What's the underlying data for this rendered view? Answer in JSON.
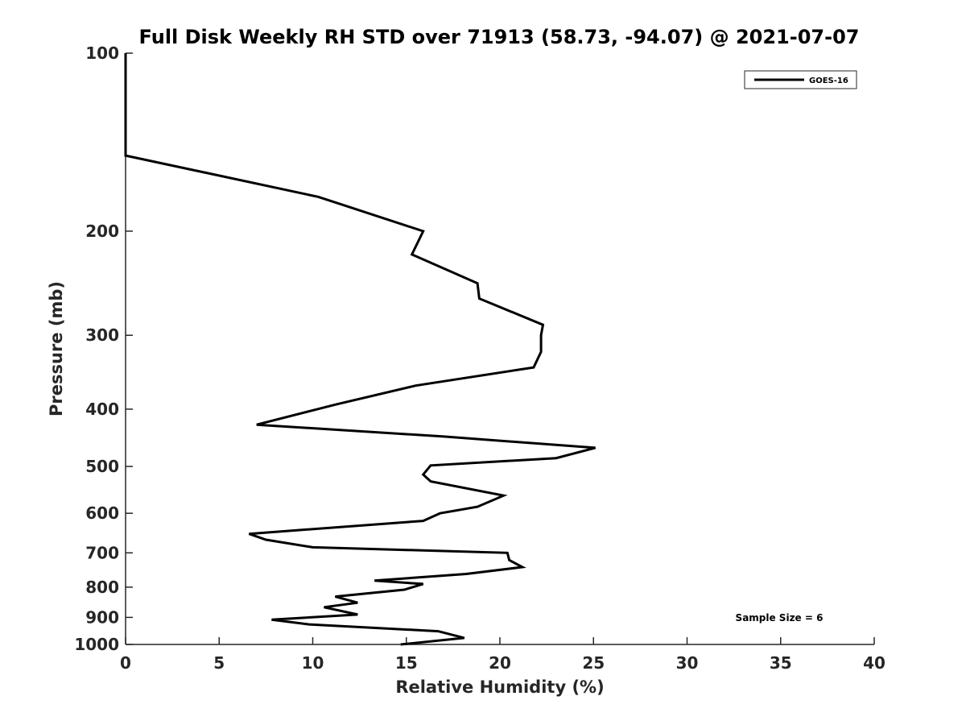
{
  "chart_data": {
    "type": "line",
    "title": "Full Disk Weekly RH STD over 71913 (58.73, -94.07) @ 2021-07-07",
    "xlabel": "Relative Humidity (%)",
    "ylabel": "Pressure (mb)",
    "xlim": [
      0,
      40
    ],
    "ylim": [
      100,
      1000
    ],
    "y_scale": "log",
    "y_reversed": true,
    "xticks": [
      0,
      5,
      10,
      15,
      20,
      25,
      30,
      35,
      40
    ],
    "yticks": [
      100,
      200,
      300,
      400,
      500,
      600,
      700,
      800,
      900,
      1000
    ],
    "grid": false,
    "legend": {
      "placement": "top-right",
      "entries": [
        "GOES-16"
      ]
    },
    "annotation": "Sample Size = 6",
    "series": [
      {
        "name": "GOES-16",
        "color": "#000000",
        "points": [
          [
            0.0,
            100
          ],
          [
            0.0,
            103
          ],
          [
            0.0,
            107
          ],
          [
            0.0,
            110
          ],
          [
            0.0,
            114
          ],
          [
            0.0,
            119
          ],
          [
            0.0,
            123
          ],
          [
            0.0,
            128
          ],
          [
            0.0,
            133
          ],
          [
            0.0,
            138
          ],
          [
            0.0,
            143
          ],
          [
            0.0,
            149
          ],
          [
            10.3,
            175
          ],
          [
            15.9,
            200
          ],
          [
            15.3,
            219
          ],
          [
            18.8,
            245
          ],
          [
            18.9,
            260
          ],
          [
            22.3,
            288
          ],
          [
            22.2,
            300
          ],
          [
            22.2,
            320
          ],
          [
            21.8,
            340
          ],
          [
            15.5,
            365
          ],
          [
            11.2,
            393
          ],
          [
            7.0,
            425
          ],
          [
            17.0,
            445
          ],
          [
            25.1,
            465
          ],
          [
            23.0,
            484
          ],
          [
            16.3,
            498
          ],
          [
            15.9,
            516
          ],
          [
            16.3,
            530
          ],
          [
            20.2,
            560
          ],
          [
            18.8,
            585
          ],
          [
            16.8,
            600
          ],
          [
            15.9,
            618
          ],
          [
            6.6,
            650
          ],
          [
            7.5,
            665
          ],
          [
            10.0,
            685
          ],
          [
            20.4,
            700
          ],
          [
            20.5,
            720
          ],
          [
            21.2,
            740
          ],
          [
            18.2,
            760
          ],
          [
            13.3,
            780
          ],
          [
            15.9,
            790
          ],
          [
            14.9,
            808
          ],
          [
            11.2,
            830
          ],
          [
            12.4,
            850
          ],
          [
            10.6,
            865
          ],
          [
            12.4,
            890
          ],
          [
            7.8,
            908
          ],
          [
            9.8,
            925
          ],
          [
            16.7,
            950
          ],
          [
            18.1,
            975
          ],
          [
            14.7,
            1000
          ]
        ]
      }
    ]
  }
}
